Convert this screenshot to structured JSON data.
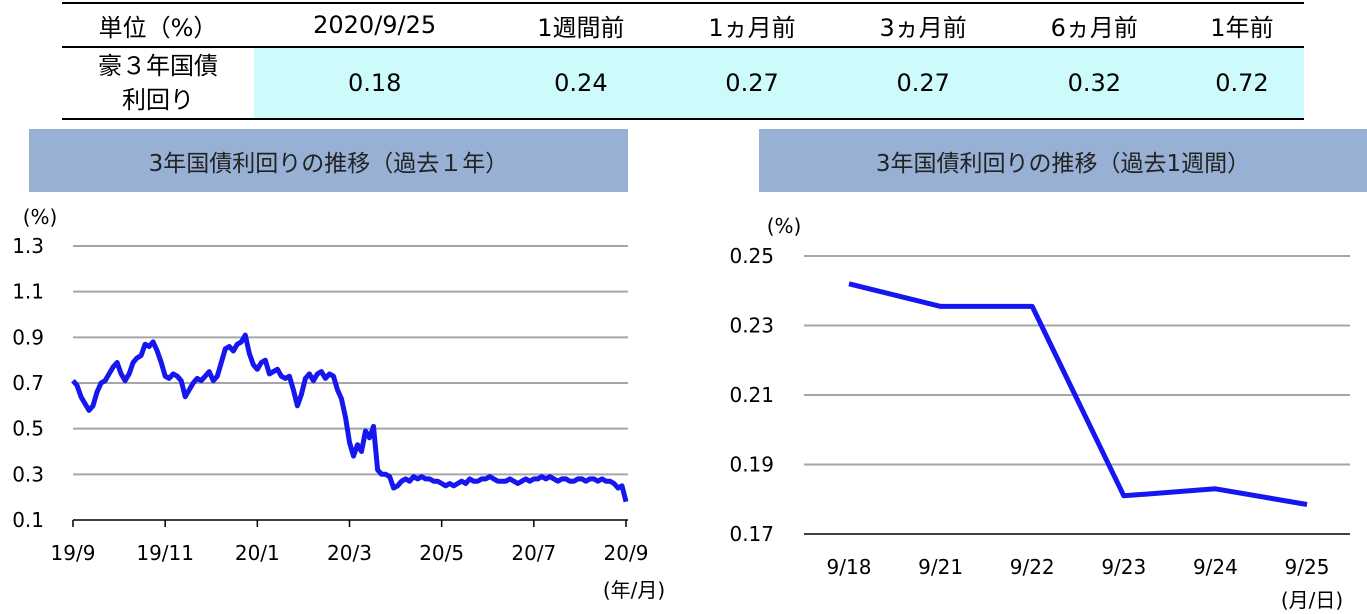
{
  "table": {
    "header": [
      "単位（%）",
      "2020/9/25",
      "1週間前",
      "1ヵ月前",
      "3ヵ月前",
      "6ヵ月前",
      "1年前"
    ],
    "row_label_lines": [
      "豪３年国債",
      "利回り"
    ],
    "values": [
      "0.18",
      "0.24",
      "0.27",
      "0.27",
      "0.32",
      "0.72"
    ]
  },
  "chart_data": [
    {
      "type": "line",
      "title": "3年国債利回りの推移（過去１年）",
      "ylabel": "(%)",
      "xlabel": "(年/月)",
      "ylim": [
        0.1,
        1.3
      ],
      "yticks": [
        "1.3",
        "1.1",
        "0.9",
        "0.7",
        "0.5",
        "0.3",
        "0.1"
      ],
      "xticks": [
        "19/9",
        "19/11",
        "20/1",
        "20/3",
        "20/5",
        "20/7",
        "20/9"
      ],
      "grid": true,
      "color": "#1616f0",
      "series": [
        {
          "values": [
            0.71,
            0.69,
            0.64,
            0.61,
            0.58,
            0.6,
            0.66,
            0.7,
            0.71,
            0.74,
            0.77,
            0.79,
            0.74,
            0.71,
            0.74,
            0.79,
            0.81,
            0.82,
            0.87,
            0.86,
            0.88,
            0.84,
            0.79,
            0.73,
            0.72,
            0.74,
            0.73,
            0.71,
            0.64,
            0.67,
            0.7,
            0.72,
            0.71,
            0.73,
            0.75,
            0.71,
            0.73,
            0.79,
            0.85,
            0.86,
            0.84,
            0.87,
            0.88,
            0.91,
            0.83,
            0.78,
            0.76,
            0.79,
            0.8,
            0.74,
            0.75,
            0.76,
            0.73,
            0.72,
            0.73,
            0.67,
            0.6,
            0.65,
            0.72,
            0.74,
            0.71,
            0.74,
            0.75,
            0.72,
            0.74,
            0.73,
            0.67,
            0.63,
            0.55,
            0.44,
            0.38,
            0.43,
            0.4,
            0.49,
            0.46,
            0.51,
            0.32,
            0.3,
            0.3,
            0.29,
            0.24,
            0.25,
            0.27,
            0.28,
            0.27,
            0.29,
            0.28,
            0.29,
            0.28,
            0.28,
            0.27,
            0.27,
            0.26,
            0.25,
            0.26,
            0.25,
            0.26,
            0.27,
            0.26,
            0.28,
            0.27,
            0.27,
            0.28,
            0.28,
            0.29,
            0.28,
            0.27,
            0.27,
            0.27,
            0.28,
            0.27,
            0.26,
            0.27,
            0.28,
            0.27,
            0.28,
            0.28,
            0.29,
            0.28,
            0.29,
            0.28,
            0.27,
            0.28,
            0.28,
            0.27,
            0.27,
            0.28,
            0.28,
            0.27,
            0.28,
            0.28,
            0.27,
            0.28,
            0.27,
            0.27,
            0.26,
            0.24,
            0.25,
            0.18
          ]
        }
      ]
    },
    {
      "type": "line",
      "title": "3年国債利回りの推移（過去1週間）",
      "ylabel": "(%)",
      "xlabel": "(月/日)",
      "ylim": [
        0.17,
        0.25
      ],
      "yticks": [
        "0.25",
        "0.23",
        "0.21",
        "0.19",
        "0.17"
      ],
      "categories": [
        "9/18",
        "9/21",
        "9/22",
        "9/23",
        "9/24",
        "9/25"
      ],
      "grid": true,
      "color": "#1616f0",
      "series": [
        {
          "values": [
            0.242,
            0.2355,
            0.2355,
            0.181,
            0.183,
            0.1785
          ]
        }
      ]
    }
  ]
}
